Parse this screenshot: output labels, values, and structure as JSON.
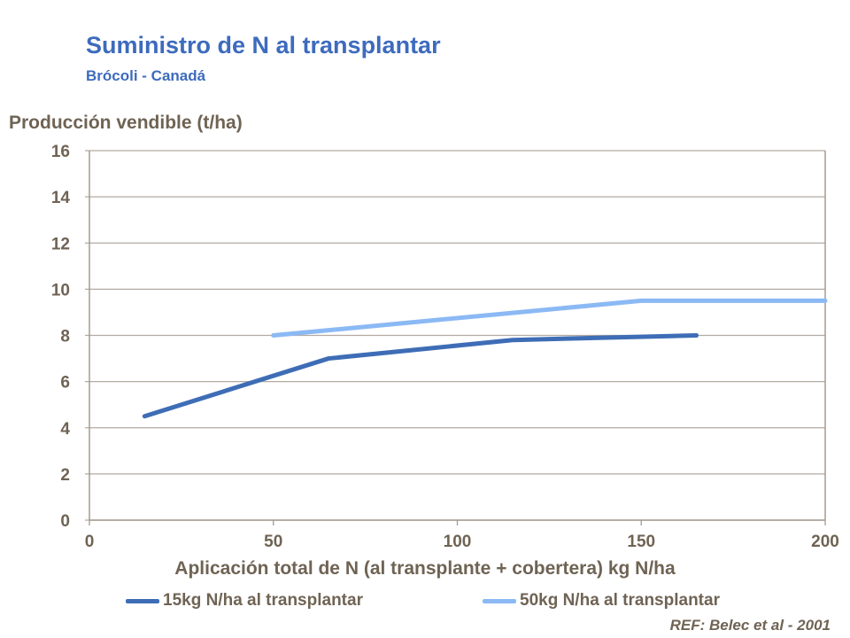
{
  "title": "Suministro de N al transplantar",
  "subtitle": "Brócoli - Canadá",
  "reference": "REF: Belec et al - 2001",
  "chart_data": {
    "type": "line",
    "ylabel": "Producción vendible (t/ha)",
    "xlabel": "Aplicación total de N (al transplante + cobertera) kg N/ha",
    "xlim": [
      0,
      200
    ],
    "ylim": [
      0,
      16
    ],
    "xticks": [
      0,
      50,
      100,
      150,
      200
    ],
    "yticks": [
      0,
      2,
      4,
      6,
      8,
      10,
      12,
      14,
      16
    ],
    "grid": "horizontal",
    "legend_position": "bottom",
    "series": [
      {
        "name": "15kg N/ha al transplantar",
        "color": "#3e6db6",
        "x": [
          15,
          65,
          115,
          165
        ],
        "y": [
          4.5,
          7.0,
          7.8,
          8.0
        ]
      },
      {
        "name": "50kg N/ha al transplantar",
        "color": "#8bb9f4",
        "x": [
          50,
          150,
          200
        ],
        "y": [
          8.0,
          9.5,
          9.5
        ]
      }
    ]
  }
}
